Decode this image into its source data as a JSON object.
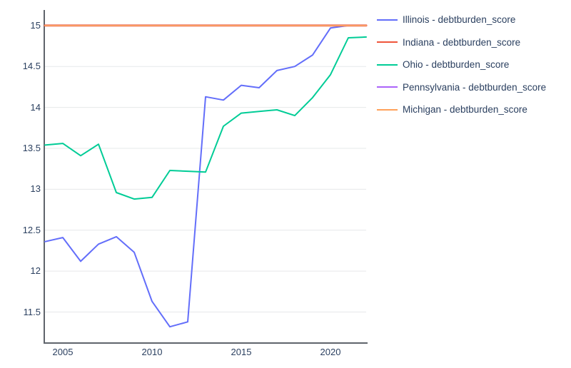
{
  "chart_data": {
    "type": "line",
    "title": "",
    "xlabel": "",
    "ylabel": "",
    "x": [
      2004,
      2005,
      2006,
      2007,
      2008,
      2009,
      2010,
      2011,
      2012,
      2013,
      2014,
      2015,
      2016,
      2017,
      2018,
      2019,
      2020,
      2021,
      2022
    ],
    "x_ticks": [
      2005,
      2010,
      2015,
      2020
    ],
    "y_ticks": [
      11.5,
      12,
      12.5,
      13,
      13.5,
      14,
      14.5,
      15
    ],
    "xlim": [
      2004,
      2022
    ],
    "ylim": [
      11.13,
      15.19
    ],
    "grid": true,
    "legend_position": "right",
    "series": [
      {
        "name": "Illinois - debtburden_score",
        "color": "#636efa",
        "values": [
          12.36,
          12.41,
          12.12,
          12.33,
          12.42,
          12.23,
          11.63,
          11.32,
          11.38,
          14.13,
          14.09,
          14.27,
          14.24,
          14.45,
          14.5,
          14.64,
          14.97,
          15,
          15
        ]
      },
      {
        "name": "Indiana - debtburden_score",
        "color": "#ef553b",
        "values": [
          15,
          15,
          15,
          15,
          15,
          15,
          15,
          15,
          15,
          15,
          15,
          15,
          15,
          15,
          15,
          15,
          15,
          15,
          15
        ]
      },
      {
        "name": "Ohio - debtburden_score",
        "color": "#00cc96",
        "values": [
          13.54,
          13.56,
          13.41,
          13.55,
          12.96,
          12.88,
          12.9,
          13.23,
          13.22,
          13.21,
          13.77,
          13.93,
          13.95,
          13.97,
          13.9,
          14.12,
          14.4,
          14.85,
          14.86
        ]
      },
      {
        "name": "Pennsylvania - debtburden_score",
        "color": "#ab63fa",
        "values": [
          15,
          15,
          15,
          15,
          15,
          15,
          15,
          15,
          15,
          15,
          15,
          15,
          15,
          15,
          15,
          15,
          15,
          15,
          15
        ]
      },
      {
        "name": "Michigan - debtburden_score",
        "color": "#ffa15a",
        "values": [
          15,
          15,
          15,
          15,
          15,
          15,
          15,
          15,
          15,
          15,
          15,
          15,
          15,
          15,
          15,
          15,
          15,
          15,
          15
        ]
      }
    ]
  },
  "colors": {
    "text": "#2a3f5f",
    "axis_line": "#5f646b",
    "grid_line": "#e6e8ea",
    "background": "#ffffff"
  }
}
